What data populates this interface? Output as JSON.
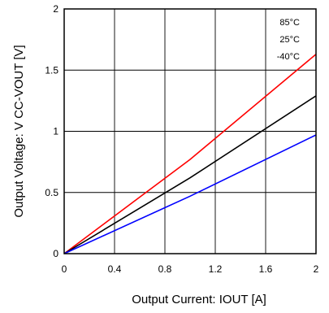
{
  "chart_data": {
    "type": "line",
    "title": "",
    "xlabel": "Output Current: IOUT [A]",
    "ylabel": "Output Voltage: V  CC-VOUT [V]",
    "xlim": [
      0,
      2
    ],
    "ylim": [
      0,
      2
    ],
    "x_ticks": [
      0,
      0.4,
      0.8,
      1.2,
      1.6,
      2
    ],
    "x_tick_labels": [
      "0",
      "0.4",
      "0.8",
      "1.2",
      "1.6",
      "2"
    ],
    "y_ticks": [
      0,
      0.5,
      1,
      1.5,
      2
    ],
    "y_tick_labels": [
      "0",
      "0.5",
      "1",
      "1.5",
      "2"
    ],
    "grid": true,
    "legend_position": "top-right",
    "series": [
      {
        "name": "85°C",
        "color": "#ff0000",
        "x": [
          0,
          1.0,
          2.0
        ],
        "y": [
          0,
          0.77,
          1.63
        ]
      },
      {
        "name": "25°C",
        "color": "#000000",
        "x": [
          0,
          1.0,
          2.0
        ],
        "y": [
          0,
          0.62,
          1.29
        ]
      },
      {
        "name": "-40°C",
        "color": "#0000ff",
        "x": [
          0,
          1.0,
          2.0
        ],
        "y": [
          0,
          0.47,
          0.97
        ]
      }
    ]
  }
}
